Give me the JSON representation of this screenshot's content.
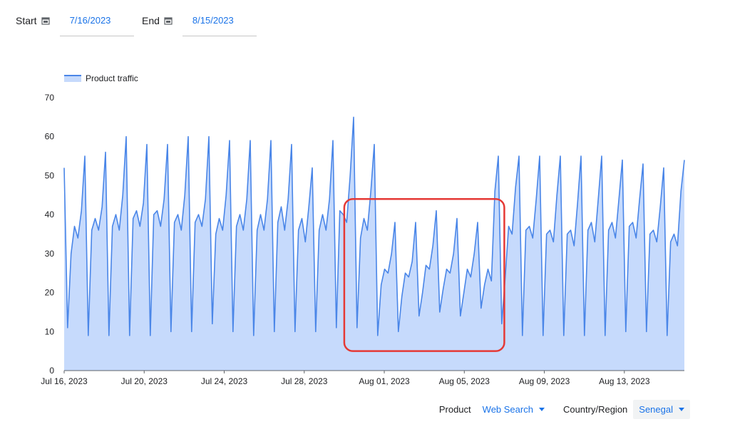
{
  "controls": {
    "start_label": "Start",
    "start_value": "7/16/2023",
    "end_label": "End",
    "end_value": "8/15/2023",
    "calendar_icon": "calendar-icon"
  },
  "filters": {
    "product_label": "Product",
    "product_value": "Web Search",
    "country_label": "Country/Region",
    "country_value": "Senegal",
    "dropdown_icon": "caret-down-icon"
  },
  "colors": {
    "line": "#4a86e8",
    "area": "#c6dafc",
    "highlight_box": "#e53935",
    "accent": "#1a73e8"
  },
  "chart_data": {
    "type": "area",
    "series": [
      {
        "name": "Product traffic",
        "x_start": "Jul 16, 2023",
        "x_end": "Aug 15, 2023",
        "values": [
          52,
          11,
          30,
          37,
          34,
          41,
          55,
          9,
          36,
          39,
          36,
          42,
          56,
          9,
          37,
          40,
          36,
          45,
          60,
          9,
          39,
          41,
          37,
          43,
          58,
          9,
          40,
          41,
          37,
          44,
          58,
          10,
          38,
          40,
          36,
          45,
          60,
          10,
          38,
          40,
          37,
          44,
          60,
          12,
          35,
          39,
          36,
          45,
          59,
          10,
          37,
          40,
          36,
          44,
          59,
          9,
          36,
          40,
          36,
          44,
          59,
          10,
          38,
          42,
          36,
          44,
          58,
          10,
          36,
          39,
          33,
          42,
          52,
          10,
          36,
          40,
          36,
          44,
          59,
          11,
          41,
          40,
          38,
          50,
          65,
          11,
          34,
          39,
          36,
          46,
          58,
          9,
          22,
          26,
          25,
          30,
          38,
          10,
          19,
          25,
          24,
          28,
          38,
          14,
          20,
          27,
          26,
          32,
          41,
          15,
          21,
          26,
          25,
          30,
          39,
          14,
          20,
          26,
          24,
          30,
          38,
          16,
          22,
          26,
          23,
          46,
          55,
          12,
          24,
          37,
          35,
          47,
          55,
          9,
          36,
          37,
          34,
          44,
          55,
          9,
          35,
          36,
          33,
          45,
          55,
          9,
          35,
          36,
          32,
          43,
          55,
          9,
          36,
          38,
          33,
          44,
          55,
          9,
          36,
          38,
          34,
          44,
          54,
          10,
          37,
          38,
          34,
          44,
          53,
          10,
          35,
          36,
          33,
          42,
          52,
          9,
          33,
          35,
          32,
          46,
          54
        ]
      }
    ],
    "x_tick_labels": [
      "Jul 16, 2023",
      "Jul 20, 2023",
      "Jul 24, 2023",
      "Jul 28, 2023",
      "Aug 01, 2023",
      "Aug 05, 2023",
      "Aug 09, 2023",
      "Aug 13, 2023"
    ],
    "y_tick_labels": [
      "0",
      "10",
      "20",
      "30",
      "40",
      "50",
      "60",
      "70"
    ],
    "ylim": [
      0,
      70
    ],
    "xlim_days": [
      0,
      31
    ],
    "grid": false,
    "legend_placement": "top-left",
    "annotations": [
      {
        "type": "highlight-box",
        "x_from_day": 14,
        "x_to_day": 22,
        "y_from": 5,
        "y_to": 44
      }
    ]
  }
}
